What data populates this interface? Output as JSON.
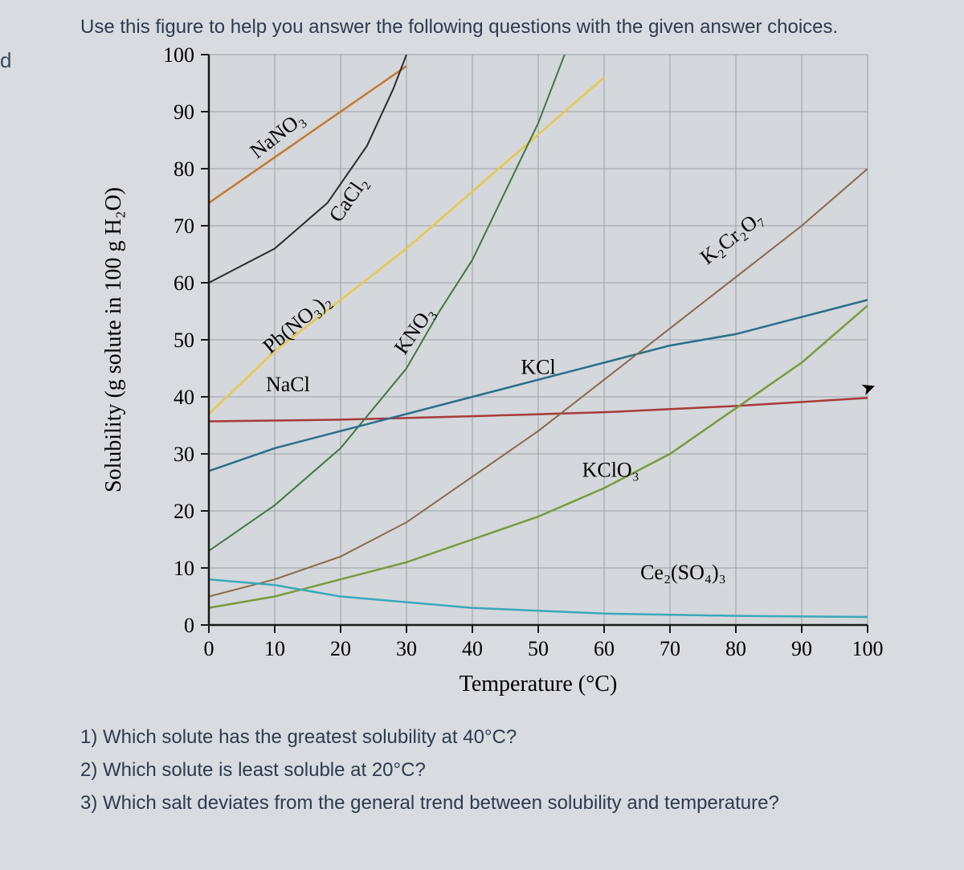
{
  "fragment": "d",
  "instruction": "Use this figure to help you answer the following questions with the given answer choices.",
  "chart": {
    "type": "line",
    "background_color": "#d0d2d6",
    "plot_bg": "#d4d7db",
    "grid_color": "#9aa0a8",
    "axis_color": "#1a1a1a",
    "axis_width": 2.5,
    "grid_width": 1,
    "xlabel": "Temperature (°C)",
    "ylabel": "Solubility (g solute in 100 g H₂O)",
    "label_fontsize": 28,
    "tick_fontsize": 26,
    "xlim": [
      0,
      100
    ],
    "ylim": [
      0,
      100
    ],
    "xticks": [
      0,
      10,
      20,
      30,
      40,
      50,
      60,
      70,
      80,
      90,
      100
    ],
    "yticks": [
      0,
      10,
      20,
      30,
      40,
      50,
      60,
      70,
      80,
      90,
      100
    ],
    "series": [
      {
        "name": "NaNO3",
        "label": "NaNO₃",
        "color": "#c37a2e",
        "width": 2.5,
        "points": [
          [
            0,
            74
          ],
          [
            10,
            82
          ],
          [
            20,
            90
          ],
          [
            25,
            94
          ],
          [
            30,
            98
          ]
        ],
        "label_x": 11,
        "label_y": 85,
        "rot": -38
      },
      {
        "name": "CaCl2",
        "label": "CaCl₂",
        "color": "#2c2c2c",
        "width": 2,
        "points": [
          [
            0,
            60
          ],
          [
            10,
            66
          ],
          [
            18,
            74
          ],
          [
            24,
            84
          ],
          [
            28,
            94
          ],
          [
            30,
            100
          ]
        ],
        "label_x": 22,
        "label_y": 74,
        "rot": -55
      },
      {
        "name": "PbNO32",
        "label": "Pb(NO₃)₂",
        "color": "#e6c94a",
        "width": 2.5,
        "points": [
          [
            0,
            37
          ],
          [
            10,
            48
          ],
          [
            20,
            57
          ],
          [
            30,
            66
          ],
          [
            40,
            76
          ],
          [
            50,
            86
          ],
          [
            60,
            96
          ]
        ],
        "label_x": 14,
        "label_y": 52,
        "rot": -40
      },
      {
        "name": "NaCl",
        "label": "NaCl",
        "color": "#a83a3a",
        "width": 2.5,
        "points": [
          [
            0,
            35.7
          ],
          [
            20,
            36.0
          ],
          [
            40,
            36.6
          ],
          [
            60,
            37.3
          ],
          [
            80,
            38.4
          ],
          [
            100,
            39.8
          ]
        ],
        "label_x": 12,
        "label_y": 41,
        "rot": 0
      },
      {
        "name": "KNO3",
        "label": "KNO₃",
        "color": "#3e7a3e",
        "width": 2,
        "points": [
          [
            0,
            13
          ],
          [
            10,
            21
          ],
          [
            20,
            31
          ],
          [
            30,
            45
          ],
          [
            35,
            55
          ],
          [
            40,
            64
          ],
          [
            45,
            76
          ],
          [
            50,
            88
          ],
          [
            54,
            100
          ]
        ],
        "label_x": 32,
        "label_y": 51,
        "rot": -55
      },
      {
        "name": "KCl",
        "label": "KCl",
        "color": "#2a6e8a",
        "width": 2.5,
        "points": [
          [
            0,
            27
          ],
          [
            10,
            31
          ],
          [
            20,
            34
          ],
          [
            30,
            37
          ],
          [
            40,
            40
          ],
          [
            50,
            43
          ],
          [
            60,
            46
          ],
          [
            70,
            49
          ],
          [
            80,
            51
          ],
          [
            90,
            54
          ],
          [
            100,
            57
          ]
        ],
        "label_x": 50,
        "label_y": 44,
        "rot": 0
      },
      {
        "name": "K2Cr2O7",
        "label": "K₂Cr₂O₇",
        "color": "#8a6a4a",
        "width": 2,
        "points": [
          [
            0,
            5
          ],
          [
            10,
            8
          ],
          [
            20,
            12
          ],
          [
            30,
            18
          ],
          [
            40,
            26
          ],
          [
            50,
            34
          ],
          [
            60,
            43
          ],
          [
            70,
            52
          ],
          [
            80,
            61
          ],
          [
            90,
            70
          ],
          [
            100,
            80
          ]
        ],
        "label_x": 80,
        "label_y": 67,
        "rot": -38
      },
      {
        "name": "KClO3",
        "label": "KClO₃",
        "color": "#7a9a3e",
        "width": 2.5,
        "points": [
          [
            0,
            3
          ],
          [
            10,
            5
          ],
          [
            20,
            8
          ],
          [
            30,
            11
          ],
          [
            40,
            15
          ],
          [
            50,
            19
          ],
          [
            60,
            24
          ],
          [
            70,
            30
          ],
          [
            80,
            38
          ],
          [
            90,
            46
          ],
          [
            100,
            56
          ]
        ],
        "label_x": 61,
        "label_y": 26,
        "rot": 0
      },
      {
        "name": "Ce2SO43",
        "label": "Ce₂(SO₄)₃",
        "color": "#3aa8b8",
        "width": 2.5,
        "points": [
          [
            0,
            8
          ],
          [
            10,
            7
          ],
          [
            20,
            5
          ],
          [
            30,
            4
          ],
          [
            40,
            3
          ],
          [
            50,
            2.5
          ],
          [
            60,
            2
          ],
          [
            70,
            1.8
          ],
          [
            80,
            1.6
          ],
          [
            90,
            1.5
          ],
          [
            100,
            1.4
          ]
        ],
        "label_x": 72,
        "label_y": 8,
        "rot": 0
      }
    ]
  },
  "questions": {
    "q1": "1) Which solute has the greatest solubility at 40°C?",
    "q2": "2) Which solute is least soluble at 20°C?",
    "q3": "3) Which salt deviates from the general trend between solubility and temperature?"
  }
}
